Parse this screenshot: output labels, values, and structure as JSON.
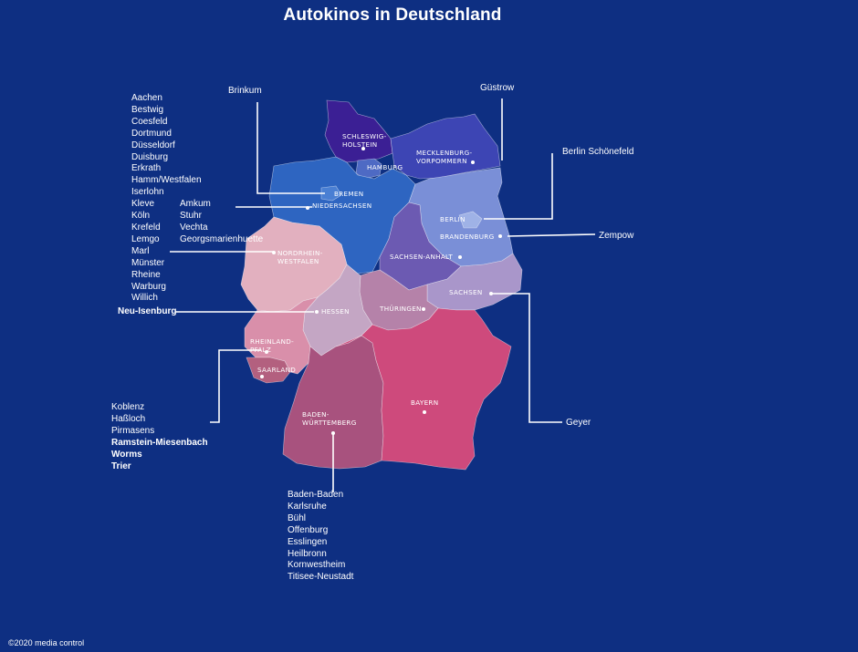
{
  "title": "Autokinos in Deutschland",
  "copyright": "©2020 media control",
  "states": [
    {
      "id": "sh",
      "lines": [
        "SCHLESWIG-",
        "HOLSTEIN"
      ],
      "color": "#3b1f94"
    },
    {
      "id": "hh",
      "lines": [
        "HAMBURG"
      ],
      "color": "#4e6ac4"
    },
    {
      "id": "mv",
      "lines": [
        "MECKLENBURG-",
        "VORPOMMERN"
      ],
      "color": "#3d45b4"
    },
    {
      "id": "hb",
      "lines": [
        "BREMEN"
      ],
      "color": "#4a7fd3"
    },
    {
      "id": "ni",
      "lines": [
        "NIEDERSACHSEN"
      ],
      "color": "#2e65c1"
    },
    {
      "id": "be",
      "lines": [
        "BERLIN"
      ],
      "color": "#9fb2e6"
    },
    {
      "id": "bb",
      "lines": [
        "BRANDENBURG"
      ],
      "color": "#7a8fd7"
    },
    {
      "id": "st",
      "lines": [
        "SACHSEN-ANHALT"
      ],
      "color": "#6c5ab2"
    },
    {
      "id": "nw",
      "lines": [
        "NORDRHEIN-",
        "WESTFALEN"
      ],
      "color": "#e2b0bf"
    },
    {
      "id": "he",
      "lines": [
        "HESSEN"
      ],
      "color": "#c4a6c4"
    },
    {
      "id": "th",
      "lines": [
        "THÜRINGEN"
      ],
      "color": "#b582a9"
    },
    {
      "id": "sn",
      "lines": [
        "SACHSEN"
      ],
      "color": "#a996ca"
    },
    {
      "id": "rp",
      "lines": [
        "RHEINLAND-",
        "PFALZ"
      ],
      "color": "#d98faa"
    },
    {
      "id": "sl",
      "lines": [
        "SAARLAND"
      ],
      "color": "#b3607f"
    },
    {
      "id": "bw",
      "lines": [
        "BADEN-",
        "WÜRTTEMBERG"
      ],
      "color": "#a8527e"
    },
    {
      "id": "by",
      "lines": [
        "BAYERN"
      ],
      "color": "#ce4a7c"
    }
  ],
  "groups": {
    "nrw": [
      "Aachen",
      "Bestwig",
      "Coesfeld",
      "Dortmund",
      "Düsseldorf",
      "Duisburg",
      "Erkrath",
      "Hamm/Westfalen",
      "Iserlohn",
      "Kleve",
      "Köln",
      "Krefeld",
      "Lemgo",
      "Marl",
      "Münster",
      "Rheine",
      "Warburg",
      "Willich"
    ],
    "ni": [
      "Amkum",
      "Stuhr",
      "Vechta",
      "Georgsmarienhuette"
    ],
    "rp": [
      "Koblenz",
      "Haßloch",
      "Pirmasens",
      "Ramstein-Miesenbach",
      "Worms",
      "Trier"
    ],
    "bw": [
      "Baden-Baden",
      "Karlsruhe",
      "Bühl",
      "Offenburg",
      "Esslingen",
      "Heilbronn",
      "Kornwestheim",
      "Titisee-Neustadt"
    ]
  },
  "singles": {
    "brinkum": "Brinkum",
    "guestrow": "Güstrow",
    "berlin_schoenefeld": "Berlin Schönefeld",
    "zempow": "Zempow",
    "neu_isenburg": "Neu-Isenburg",
    "geyer": "Geyer"
  }
}
